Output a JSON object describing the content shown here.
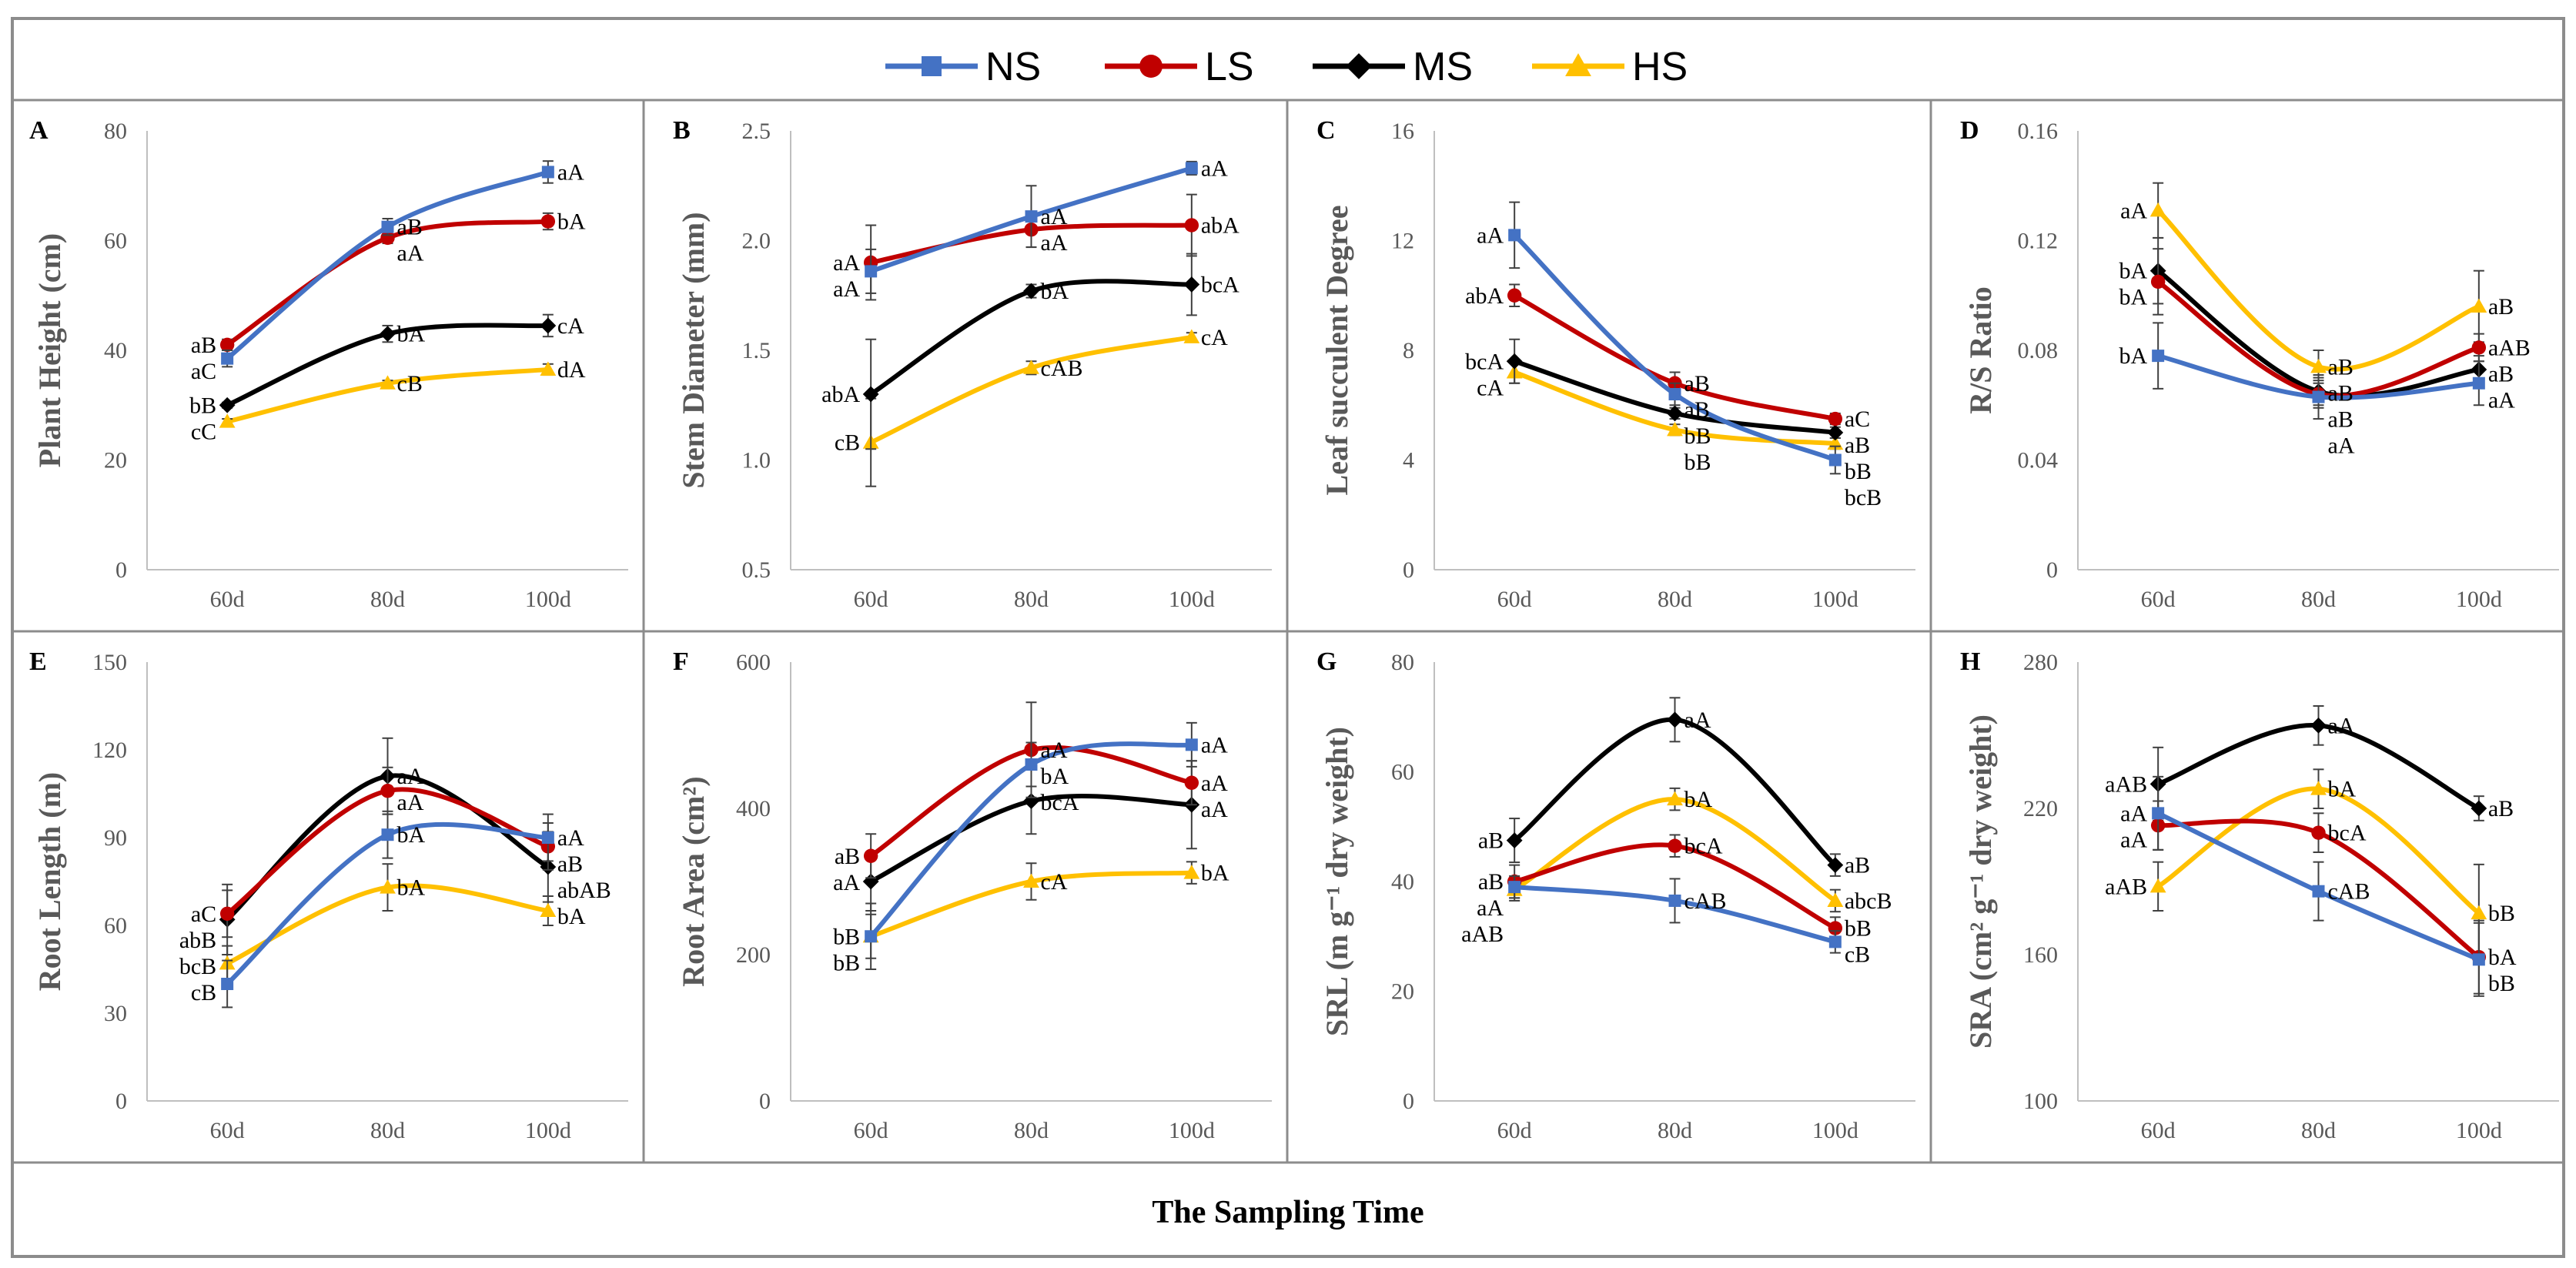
{
  "colors": {
    "NS": "#4472C4",
    "LS": "#C00000",
    "MS": "#000000",
    "HS": "#FFC000",
    "axis": "#595959"
  },
  "legend": [
    {
      "name": "NS",
      "marker": "square"
    },
    {
      "name": "LS",
      "marker": "circle"
    },
    {
      "name": "MS",
      "marker": "diamond"
    },
    {
      "name": "HS",
      "marker": "triangle"
    }
  ],
  "x_title": "The Sampling Time",
  "chart_data": [
    {
      "panel": "A",
      "type": "line",
      "ylabel": "Plant Height (cm)",
      "categories": [
        "60d",
        "80d",
        "100d"
      ],
      "ylim": [
        0,
        80
      ],
      "yticks": [
        "0",
        "20",
        "40",
        "60",
        "80"
      ],
      "series": [
        {
          "name": "NS",
          "values": [
            38.5,
            62.5,
            72.5
          ],
          "err": [
            1.5,
            1.5,
            2
          ],
          "labels": [
            "aC",
            "aB",
            "aA"
          ]
        },
        {
          "name": "LS",
          "values": [
            41,
            60.5,
            63.5
          ],
          "err": [
            1,
            1,
            1.5
          ],
          "labels": [
            "aB",
            "aA",
            "bA"
          ]
        },
        {
          "name": "MS",
          "values": [
            30,
            43,
            44.5
          ],
          "err": [
            0.5,
            1.5,
            2
          ],
          "labels": [
            "bB",
            "bA",
            "cA"
          ]
        },
        {
          "name": "HS",
          "values": [
            27,
            34,
            36.5
          ],
          "err": [
            0.5,
            0.5,
            1
          ],
          "labels": [
            "cC",
            "cB",
            "dA"
          ]
        }
      ]
    },
    {
      "panel": "B",
      "type": "line",
      "ylabel": "Stem Diameter (mm)",
      "categories": [
        "60d",
        "80d",
        "100d"
      ],
      "ylim": [
        0.5,
        2.5
      ],
      "yticks": [
        "0.5",
        "1.0",
        "1.5",
        "2.0",
        "2.5"
      ],
      "series": [
        {
          "name": "NS",
          "values": [
            1.86,
            2.11,
            2.33
          ],
          "err": [
            0.1,
            0.14,
            0.03
          ],
          "labels": [
            "aA",
            "aA",
            "aA"
          ]
        },
        {
          "name": "LS",
          "values": [
            1.9,
            2.05,
            2.07
          ],
          "err": [
            0.17,
            0.08,
            0.14
          ],
          "labels": [
            "aA",
            "aA",
            "abA"
          ]
        },
        {
          "name": "MS",
          "values": [
            1.3,
            1.77,
            1.8
          ],
          "err": [
            0.25,
            0.03,
            0.14
          ],
          "labels": [
            "abA",
            "bA",
            "bcA"
          ]
        },
        {
          "name": "HS",
          "values": [
            1.08,
            1.42,
            1.56
          ],
          "err": [
            0.2,
            0.03,
            0.02
          ],
          "labels": [
            "cB",
            "cAB",
            "cA"
          ]
        }
      ]
    },
    {
      "panel": "C",
      "type": "line",
      "ylabel": "Leaf succulent Degree",
      "categories": [
        "60d",
        "80d",
        "100d"
      ],
      "ylim": [
        0,
        16
      ],
      "yticks": [
        "0",
        "4",
        "8",
        "12",
        "16"
      ],
      "series": [
        {
          "name": "NS",
          "values": [
            12.2,
            6.4,
            4.0
          ],
          "err": [
            1.2,
            0.4,
            0.5
          ],
          "labels": [
            "aA",
            "aB",
            "bcB"
          ]
        },
        {
          "name": "LS",
          "values": [
            10.0,
            6.8,
            5.5
          ],
          "err": [
            0.4,
            0.4,
            0.2
          ],
          "labels": [
            "abA",
            "aB",
            "aC"
          ]
        },
        {
          "name": "MS",
          "values": [
            7.6,
            5.7,
            5.0
          ],
          "err": [
            0.8,
            0.2,
            0.2
          ],
          "labels": [
            "bcA",
            "bB",
            "aB"
          ]
        },
        {
          "name": "HS",
          "values": [
            7.2,
            5.1,
            4.6
          ],
          "err": [
            0.4,
            0.2,
            0.2
          ],
          "labels": [
            "cA",
            "bB",
            "bB"
          ]
        }
      ]
    },
    {
      "panel": "D",
      "type": "line",
      "ylabel": "R/S Ratio",
      "categories": [
        "60d",
        "80d",
        "100d"
      ],
      "ylim": [
        0,
        0.16
      ],
      "yticks": [
        "0",
        "0.04",
        "0.08",
        "0.12",
        "0.16"
      ],
      "series": [
        {
          "name": "NS",
          "values": [
            0.078,
            0.063,
            0.068
          ],
          "err": [
            0.012,
            0.008,
            0.008
          ],
          "labels": [
            "bA",
            "aA",
            "aA"
          ]
        },
        {
          "name": "LS",
          "values": [
            0.105,
            0.064,
            0.081
          ],
          "err": [
            0.012,
            0.005,
            0.005
          ],
          "labels": [
            "bA",
            "aB",
            "aAB"
          ]
        },
        {
          "name": "MS",
          "values": [
            0.109,
            0.065,
            0.073
          ],
          "err": [
            0.012,
            0.005,
            0.005
          ],
          "labels": [
            "bA",
            "aB",
            "aB"
          ]
        },
        {
          "name": "HS",
          "values": [
            0.131,
            0.074,
            0.096
          ],
          "err": [
            0.01,
            0.006,
            0.013
          ],
          "labels": [
            "aA",
            "aB",
            "aB"
          ]
        }
      ]
    },
    {
      "panel": "E",
      "type": "line",
      "ylabel": "Root Length (m)",
      "categories": [
        "60d",
        "80d",
        "100d"
      ],
      "ylim": [
        0,
        150
      ],
      "yticks": [
        "0",
        "30",
        "60",
        "90",
        "120",
        "150"
      ],
      "series": [
        {
          "name": "NS",
          "values": [
            40,
            91,
            90
          ],
          "err": [
            8,
            8,
            8
          ],
          "labels": [
            "cB",
            "bA",
            "aA"
          ]
        },
        {
          "name": "LS",
          "values": [
            64,
            106,
            87
          ],
          "err": [
            8,
            8,
            8
          ],
          "labels": [
            "aC",
            "aA",
            "aB"
          ]
        },
        {
          "name": "MS",
          "values": [
            62,
            111,
            80
          ],
          "err": [
            12,
            13,
            12
          ],
          "labels": [
            "abB",
            "aA",
            "abAB"
          ]
        },
        {
          "name": "HS",
          "values": [
            47,
            73,
            65
          ],
          "err": [
            6,
            8,
            5
          ],
          "labels": [
            "bcB",
            "bA",
            "bA"
          ]
        }
      ]
    },
    {
      "panel": "F",
      "type": "line",
      "ylabel": "Root Area (cm²)",
      "categories": [
        "60d",
        "80d",
        "100d"
      ],
      "ylim": [
        0,
        600
      ],
      "yticks": [
        "0",
        "200",
        "400",
        "600"
      ],
      "series": [
        {
          "name": "NS",
          "values": [
            225,
            460,
            487
          ],
          "err": [
            30,
            30,
            30
          ],
          "labels": [
            "bB",
            "bA",
            "aA"
          ]
        },
        {
          "name": "LS",
          "values": [
            335,
            480,
            435
          ],
          "err": [
            30,
            65,
            30
          ],
          "labels": [
            "aB",
            "aA",
            "aA"
          ]
        },
        {
          "name": "MS",
          "values": [
            300,
            410,
            405
          ],
          "err": [
            40,
            45,
            60
          ],
          "labels": [
            "aA",
            "bcA",
            "aA"
          ]
        },
        {
          "name": "HS",
          "values": [
            225,
            300,
            312
          ],
          "err": [
            45,
            25,
            15
          ],
          "labels": [
            "bB",
            "cA",
            "bA"
          ]
        }
      ]
    },
    {
      "panel": "G",
      "type": "line",
      "ylabel": "SRL (m g⁻¹ dry weight)",
      "categories": [
        "60d",
        "80d",
        "100d"
      ],
      "ylim": [
        0,
        80
      ],
      "yticks": [
        "0",
        "20",
        "40",
        "60",
        "80"
      ],
      "series": [
        {
          "name": "NS",
          "values": [
            39,
            36.5,
            29
          ],
          "err": [
            2,
            4,
            2
          ],
          "labels": [
            "aA",
            "cAB",
            "cB"
          ]
        },
        {
          "name": "LS",
          "values": [
            40,
            46.5,
            31.5
          ],
          "err": [
            3,
            2,
            2
          ],
          "labels": [
            "aB",
            "bcA",
            "bB"
          ]
        },
        {
          "name": "MS",
          "values": [
            47.5,
            69.5,
            43
          ],
          "err": [
            4,
            4,
            2
          ],
          "labels": [
            "aB",
            "aA",
            "aB"
          ]
        },
        {
          "name": "HS",
          "values": [
            38.5,
            55,
            36.5
          ],
          "err": [
            2,
            2,
            2
          ],
          "labels": [
            "aAB",
            "bA",
            "abcB"
          ]
        }
      ]
    },
    {
      "panel": "H",
      "type": "line",
      "ylabel": "SRA (cm² g⁻¹ dry weight)",
      "categories": [
        "60d",
        "80d",
        "100d"
      ],
      "ylim": [
        100,
        280
      ],
      "yticks": [
        "100",
        "160",
        "220",
        "280"
      ],
      "series": [
        {
          "name": "NS",
          "values": [
            218,
            186,
            158
          ],
          "err": [
            15,
            12,
            15
          ],
          "labels": [
            "aA",
            "cAB",
            "bB"
          ]
        },
        {
          "name": "LS",
          "values": [
            213,
            210,
            159
          ],
          "err": [
            10,
            8,
            15
          ],
          "labels": [
            "aA",
            "bcA",
            "bA"
          ]
        },
        {
          "name": "MS",
          "values": [
            230,
            254,
            220
          ],
          "err": [
            15,
            8,
            5
          ],
          "labels": [
            "aAB",
            "aA",
            "aB"
          ]
        },
        {
          "name": "HS",
          "values": [
            188,
            228,
            177
          ],
          "err": [
            10,
            8,
            20
          ],
          "labels": [
            "aAB",
            "bA",
            "bB"
          ]
        }
      ]
    }
  ]
}
